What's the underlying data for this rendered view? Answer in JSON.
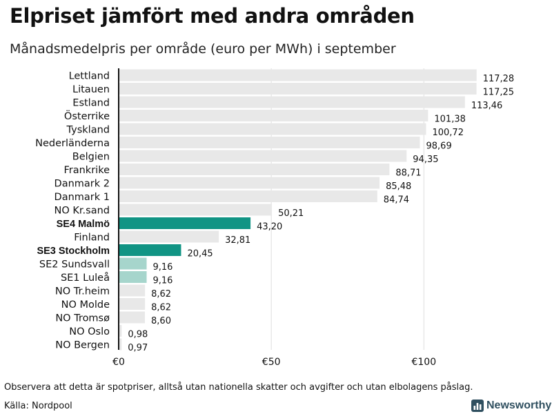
{
  "header": {
    "title": "Elpriset jämfört med andra områden",
    "subtitle": "Månadsmedelpris per område (euro per MWh) i september"
  },
  "footer": {
    "note": "Observera att detta är spotpriser, alltså utan nationella skatter och avgifter och utan elbolagens påslag.",
    "source": "Källa: Nordpool",
    "brand": "Newsworthy"
  },
  "colors": {
    "default_bar": "#e8e8e8",
    "highlight": "#119484",
    "light_highlight": "#a6d5cc",
    "axis": "#111111"
  },
  "chart_data": {
    "type": "bar",
    "orientation": "horizontal",
    "title": "Elpriset jämfört med andra områden",
    "subtitle": "Månadsmedelpris per område (euro per MWh) i september",
    "xlabel": "",
    "ylabel": "",
    "xlim": [
      0,
      117.28
    ],
    "xticks": [
      0,
      50,
      100
    ],
    "xtick_labels": [
      "€0",
      "€50",
      "€100"
    ],
    "grid": true,
    "categories": [
      "Lettland",
      "Litauen",
      "Estland",
      "Österrike",
      "Tyskland",
      "Nederländerna",
      "Belgien",
      "Frankrike",
      "Danmark  2",
      "Danmark  1",
      "NO Kr.sand",
      "SE4 Malmö",
      "Finland",
      "SE3 Stockholm",
      "SE2  Sundsvall",
      "SE1  Luleå",
      "NO Tr.heim",
      "NO Molde",
      "NO Tromsø",
      "NO Oslo",
      "NO Bergen"
    ],
    "values": [
      117.28,
      117.25,
      113.46,
      101.38,
      100.72,
      98.69,
      94.35,
      88.71,
      85.48,
      84.74,
      50.21,
      43.2,
      32.81,
      20.45,
      9.16,
      9.16,
      8.62,
      8.62,
      8.6,
      0.98,
      0.97
    ],
    "value_labels": [
      "117,28",
      "117,25",
      "113,46",
      "101,38",
      "100,72",
      "98,69",
      "94,35",
      "88,71",
      "85,48",
      "84,74",
      "50,21",
      "43,20",
      "32,81",
      "20,45",
      "9,16",
      "9,16",
      "8,62",
      "8,62",
      "8,60",
      "0,98",
      "0,97"
    ],
    "bold": [
      false,
      false,
      false,
      false,
      false,
      false,
      false,
      false,
      false,
      false,
      false,
      true,
      false,
      true,
      false,
      false,
      false,
      false,
      false,
      false,
      false
    ],
    "colors": [
      "default_bar",
      "default_bar",
      "default_bar",
      "default_bar",
      "default_bar",
      "default_bar",
      "default_bar",
      "default_bar",
      "default_bar",
      "default_bar",
      "default_bar",
      "highlight",
      "default_bar",
      "highlight",
      "light_highlight",
      "light_highlight",
      "default_bar",
      "default_bar",
      "default_bar",
      "default_bar",
      "default_bar"
    ]
  }
}
